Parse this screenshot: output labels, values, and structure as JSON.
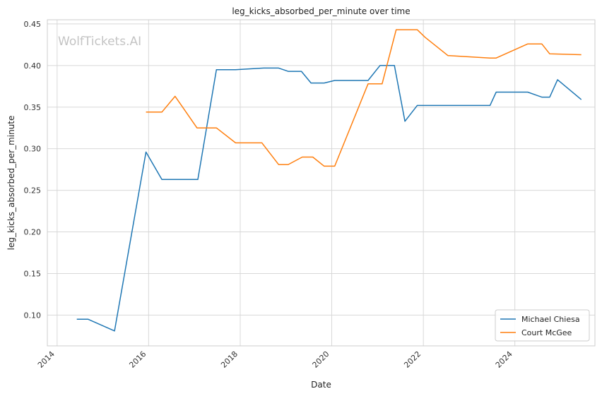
{
  "chart_data": {
    "type": "line",
    "title": "leg_kicks_absorbed_per_minute over time",
    "xlabel": "Date",
    "ylabel": "leg_kicks_absorbed_per_minute",
    "watermark": "WolfTickets.AI",
    "xlim": [
      "2013-10-15",
      "2025-10-01"
    ],
    "ylim": [
      0.063,
      0.455
    ],
    "x_ticks": [
      "2014-01-01",
      "2016-01-01",
      "2018-01-01",
      "2020-01-01",
      "2022-01-01",
      "2024-01-01"
    ],
    "x_tick_labels": [
      "2014",
      "2016",
      "2018",
      "2020",
      "2022",
      "2024"
    ],
    "y_ticks": [
      0.1,
      0.15,
      0.2,
      0.25,
      0.3,
      0.35,
      0.4,
      0.45
    ],
    "y_tick_labels": [
      "0.10",
      "0.15",
      "0.20",
      "0.25",
      "0.30",
      "0.35",
      "0.40",
      "0.45"
    ],
    "grid": true,
    "legend_position": "lower-right",
    "series": [
      {
        "name": "Michael Chiesa",
        "color": "#1f77b4",
        "points": [
          [
            "2014-06-07",
            0.095
          ],
          [
            "2014-09-06",
            0.095
          ],
          [
            "2015-04-04",
            0.081
          ],
          [
            "2015-12-11",
            0.296
          ],
          [
            "2016-04-16",
            0.263
          ],
          [
            "2017-01-28",
            0.263
          ],
          [
            "2017-06-25",
            0.395
          ],
          [
            "2017-11-25",
            0.395
          ],
          [
            "2018-07-07",
            0.397
          ],
          [
            "2018-11-03",
            0.397
          ],
          [
            "2019-01-19",
            0.393
          ],
          [
            "2019-05-04",
            0.393
          ],
          [
            "2019-07-20",
            0.379
          ],
          [
            "2019-11-02",
            0.379
          ],
          [
            "2020-01-25",
            0.382
          ],
          [
            "2020-10-17",
            0.382
          ],
          [
            "2021-01-20",
            0.4
          ],
          [
            "2021-05-15",
            0.4
          ],
          [
            "2021-08-07",
            0.333
          ],
          [
            "2021-11-13",
            0.352
          ],
          [
            "2023-06-17",
            0.352
          ],
          [
            "2023-08-05",
            0.368
          ],
          [
            "2024-04-13",
            0.368
          ],
          [
            "2024-08-03",
            0.362
          ],
          [
            "2024-10-05",
            0.362
          ],
          [
            "2024-12-07",
            0.383
          ],
          [
            "2025-06-14",
            0.359
          ]
        ]
      },
      {
        "name": "Court McGee",
        "color": "#ff7f0e",
        "points": [
          [
            "2015-12-11",
            0.344
          ],
          [
            "2016-04-16",
            0.344
          ],
          [
            "2016-07-30",
            0.363
          ],
          [
            "2017-01-21",
            0.325
          ],
          [
            "2017-06-25",
            0.325
          ],
          [
            "2017-11-25",
            0.307
          ],
          [
            "2018-06-23",
            0.307
          ],
          [
            "2018-11-03",
            0.281
          ],
          [
            "2019-01-19",
            0.281
          ],
          [
            "2019-05-11",
            0.29
          ],
          [
            "2019-08-03",
            0.29
          ],
          [
            "2019-11-02",
            0.279
          ],
          [
            "2020-01-25",
            0.279
          ],
          [
            "2020-10-17",
            0.378
          ],
          [
            "2021-02-06",
            0.378
          ],
          [
            "2021-05-29",
            0.443
          ],
          [
            "2021-11-13",
            0.443
          ],
          [
            "2022-01-15",
            0.434
          ],
          [
            "2022-07-16",
            0.412
          ],
          [
            "2023-06-17",
            0.409
          ],
          [
            "2023-08-05",
            0.409
          ],
          [
            "2024-04-13",
            0.426
          ],
          [
            "2024-08-03",
            0.426
          ],
          [
            "2024-10-05",
            0.414
          ],
          [
            "2025-06-14",
            0.413
          ]
        ]
      }
    ]
  }
}
